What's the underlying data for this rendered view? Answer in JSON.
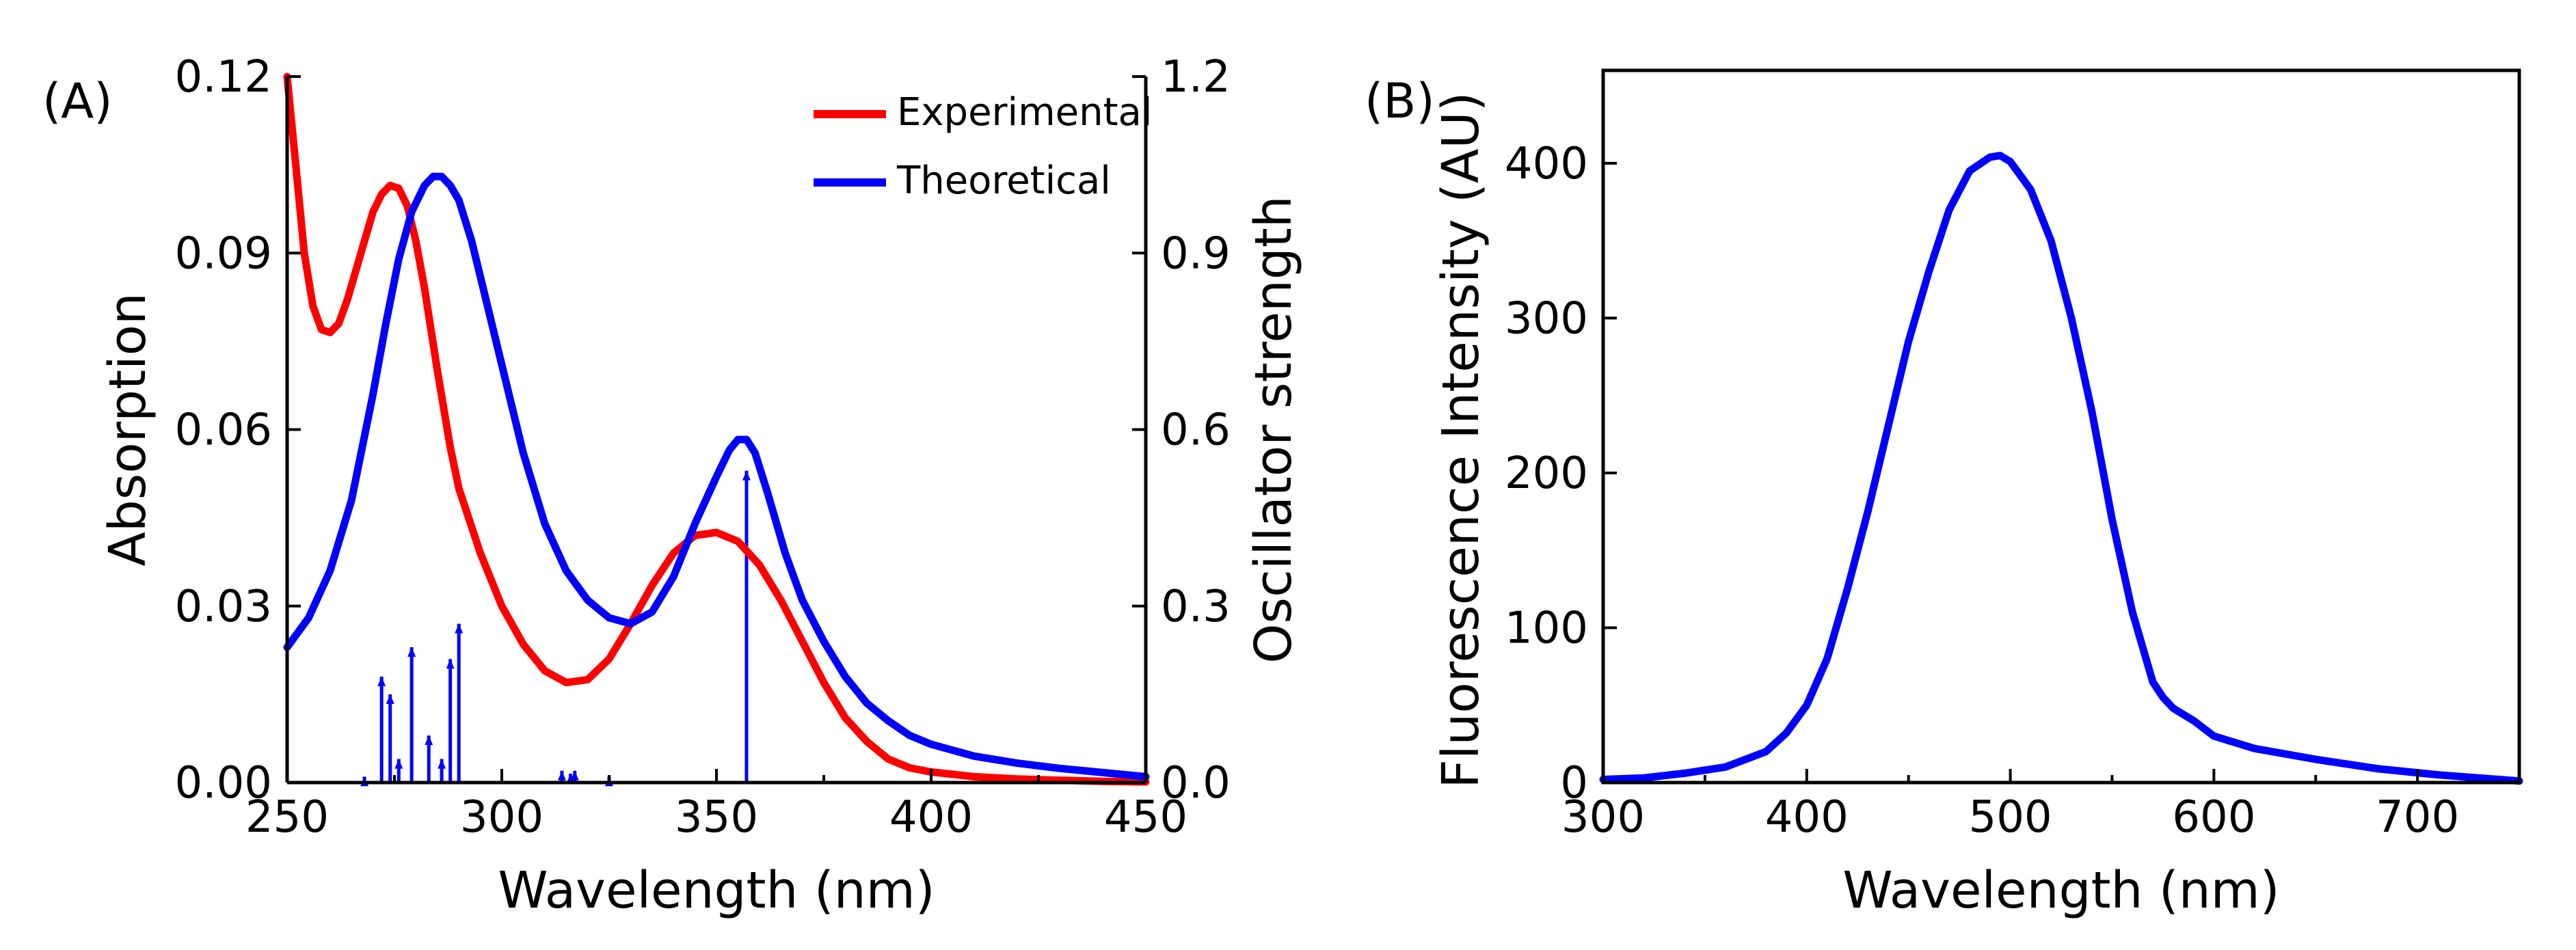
{
  "chart_data": [
    {
      "panel_label": "(A)",
      "type": "line",
      "xlabel": "Wavelength (nm)",
      "ylabel": "Absorption",
      "y2label": "Oscillator strength",
      "xlim": [
        250,
        450
      ],
      "ylim": [
        0,
        0.12
      ],
      "y2lim": [
        0,
        1.2
      ],
      "xticks": [
        250,
        300,
        350,
        400,
        450
      ],
      "xtick_labels": [
        "250",
        "300",
        "350",
        "400",
        "450"
      ],
      "yticks": [
        0,
        0.03,
        0.06,
        0.09,
        0.12
      ],
      "ytick_labels": [
        "0.00",
        "0.03",
        "0.06",
        "0.09",
        "0.12"
      ],
      "y2ticks": [
        0,
        0.3,
        0.6,
        0.9,
        1.2
      ],
      "y2tick_labels": [
        "0.0",
        "0.3",
        "0.6",
        "0.9",
        "1.2"
      ],
      "grid": false,
      "legend_position": "top-right",
      "series": [
        {
          "name": "Experimental",
          "color": "#ff0000",
          "axis": "left",
          "x": [
            250,
            252,
            254,
            256,
            258,
            260,
            262,
            264,
            266,
            268,
            270,
            272,
            274,
            276,
            278,
            280,
            282,
            285,
            288,
            290,
            295,
            300,
            305,
            310,
            315,
            320,
            325,
            330,
            335,
            340,
            345,
            350,
            355,
            360,
            365,
            370,
            375,
            380,
            385,
            390,
            395,
            400,
            410,
            420,
            430,
            440,
            450
          ],
          "values": [
            0.12,
            0.105,
            0.09,
            0.081,
            0.077,
            0.0765,
            0.078,
            0.082,
            0.087,
            0.092,
            0.097,
            0.1,
            0.1015,
            0.101,
            0.098,
            0.092,
            0.084,
            0.07,
            0.057,
            0.05,
            0.039,
            0.03,
            0.0235,
            0.019,
            0.017,
            0.0175,
            0.021,
            0.027,
            0.0335,
            0.039,
            0.042,
            0.0425,
            0.041,
            0.037,
            0.031,
            0.024,
            0.017,
            0.011,
            0.007,
            0.004,
            0.0025,
            0.0018,
            0.001,
            0.0006,
            0.0004,
            0.0002,
            0.0001
          ]
        },
        {
          "name": "Theoretical",
          "color": "#0000ff",
          "axis": "left",
          "x": [
            250,
            255,
            260,
            265,
            270,
            273,
            276,
            279,
            282,
            284,
            286,
            288,
            290,
            293,
            296,
            300,
            305,
            310,
            315,
            320,
            325,
            330,
            335,
            340,
            345,
            350,
            353,
            355,
            357,
            359,
            362,
            366,
            370,
            375,
            380,
            385,
            390,
            395,
            400,
            410,
            420,
            430,
            440,
            450
          ],
          "values": [
            0.023,
            0.028,
            0.036,
            0.048,
            0.066,
            0.078,
            0.089,
            0.097,
            0.1015,
            0.103,
            0.103,
            0.1015,
            0.099,
            0.092,
            0.083,
            0.071,
            0.056,
            0.044,
            0.036,
            0.031,
            0.028,
            0.027,
            0.029,
            0.035,
            0.044,
            0.052,
            0.0565,
            0.0583,
            0.0583,
            0.056,
            0.049,
            0.039,
            0.031,
            0.024,
            0.018,
            0.0135,
            0.0105,
            0.008,
            0.0065,
            0.0045,
            0.0033,
            0.0024,
            0.0017,
            0.001
          ]
        },
        {
          "name": "Oscillator strength sticks",
          "type": "stick",
          "color": "#0000ff",
          "axis": "right",
          "x": [
            268,
            272,
            274,
            276,
            279,
            283,
            286,
            288,
            290,
            314,
            316,
            317,
            325,
            357
          ],
          "values": [
            0.01,
            0.18,
            0.15,
            0.04,
            0.23,
            0.08,
            0.04,
            0.21,
            0.27,
            0.02,
            0.015,
            0.02,
            0.01,
            0.53
          ]
        }
      ]
    },
    {
      "panel_label": "(B)",
      "type": "line",
      "xlabel": "Wavelength (nm)",
      "ylabel": "Fluorescence Intensity (AU)",
      "xlim": [
        300,
        750
      ],
      "ylim": [
        0,
        460
      ],
      "xticks": [
        300,
        400,
        500,
        600,
        700
      ],
      "xtick_labels": [
        "300",
        "400",
        "500",
        "600",
        "700"
      ],
      "yticks": [
        0,
        100,
        200,
        300,
        400
      ],
      "ytick_labels": [
        "0",
        "100",
        "200",
        "300",
        "400"
      ],
      "grid": false,
      "series": [
        {
          "name": "Fluorescence",
          "color": "#0000ff",
          "x": [
            300,
            320,
            340,
            360,
            380,
            390,
            400,
            410,
            420,
            430,
            440,
            450,
            460,
            470,
            480,
            490,
            495,
            500,
            510,
            520,
            530,
            540,
            550,
            560,
            570,
            575,
            580,
            590,
            600,
            620,
            650,
            680,
            710,
            740,
            750
          ],
          "values": [
            2,
            3,
            6,
            10,
            20,
            32,
            50,
            80,
            125,
            175,
            230,
            285,
            330,
            370,
            395,
            404,
            405,
            401,
            383,
            350,
            300,
            240,
            170,
            110,
            65,
            55,
            48,
            40,
            30,
            22,
            15,
            9,
            5,
            2,
            1
          ]
        }
      ]
    }
  ]
}
